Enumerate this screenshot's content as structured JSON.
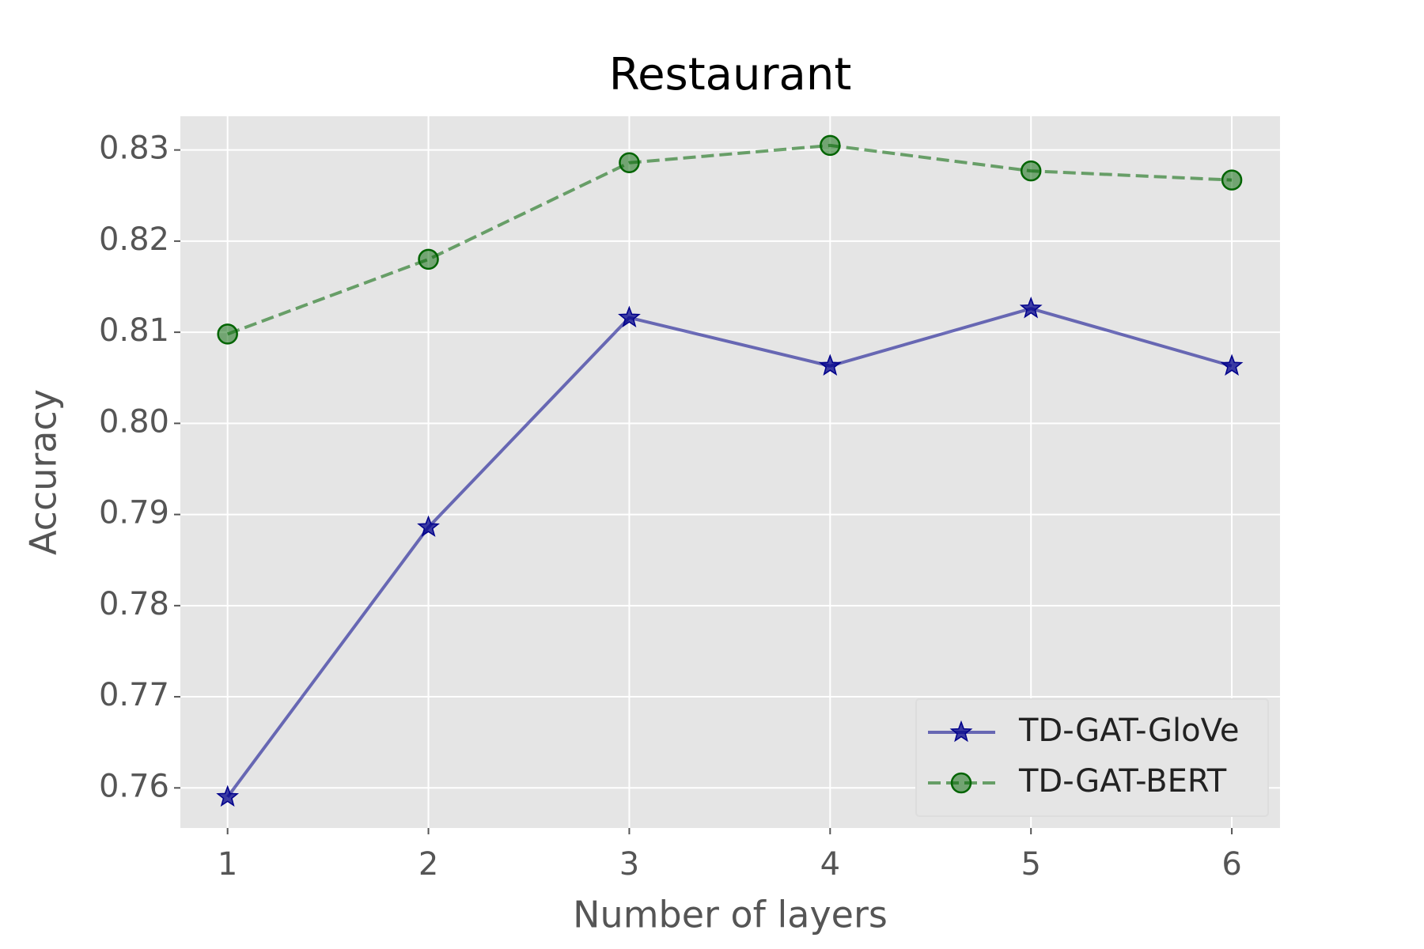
{
  "chart_data": {
    "type": "line",
    "title": "Restaurant",
    "x_label": "Number of layers",
    "y_label": "Accuracy",
    "x": [
      1,
      2,
      3,
      4,
      5,
      6
    ],
    "series": [
      {
        "name": "TD-GAT-GloVe",
        "color": "#00008b",
        "linestyle": "solid",
        "marker": "star",
        "values": [
          0.759,
          0.7886,
          0.8116,
          0.8063,
          0.8126,
          0.8063
        ]
      },
      {
        "name": "TD-GAT-BERT",
        "color": "#006400",
        "linestyle": "dashed",
        "marker": "circle",
        "values": [
          0.8098,
          0.818,
          0.8286,
          0.8305,
          0.8277,
          0.8267
        ]
      }
    ],
    "xlim": [
      0.765,
      6.24
    ],
    "xticks": [
      1,
      2,
      3,
      4,
      5,
      6
    ],
    "ylim": [
      0.7556,
      0.8337
    ],
    "yticks": [
      0.76,
      0.77,
      0.78,
      0.79,
      {
        "value": 0.8,
        "label": "0.80"
      },
      0.81,
      0.82,
      0.83
    ],
    "grid": true,
    "legend": "lower right"
  }
}
